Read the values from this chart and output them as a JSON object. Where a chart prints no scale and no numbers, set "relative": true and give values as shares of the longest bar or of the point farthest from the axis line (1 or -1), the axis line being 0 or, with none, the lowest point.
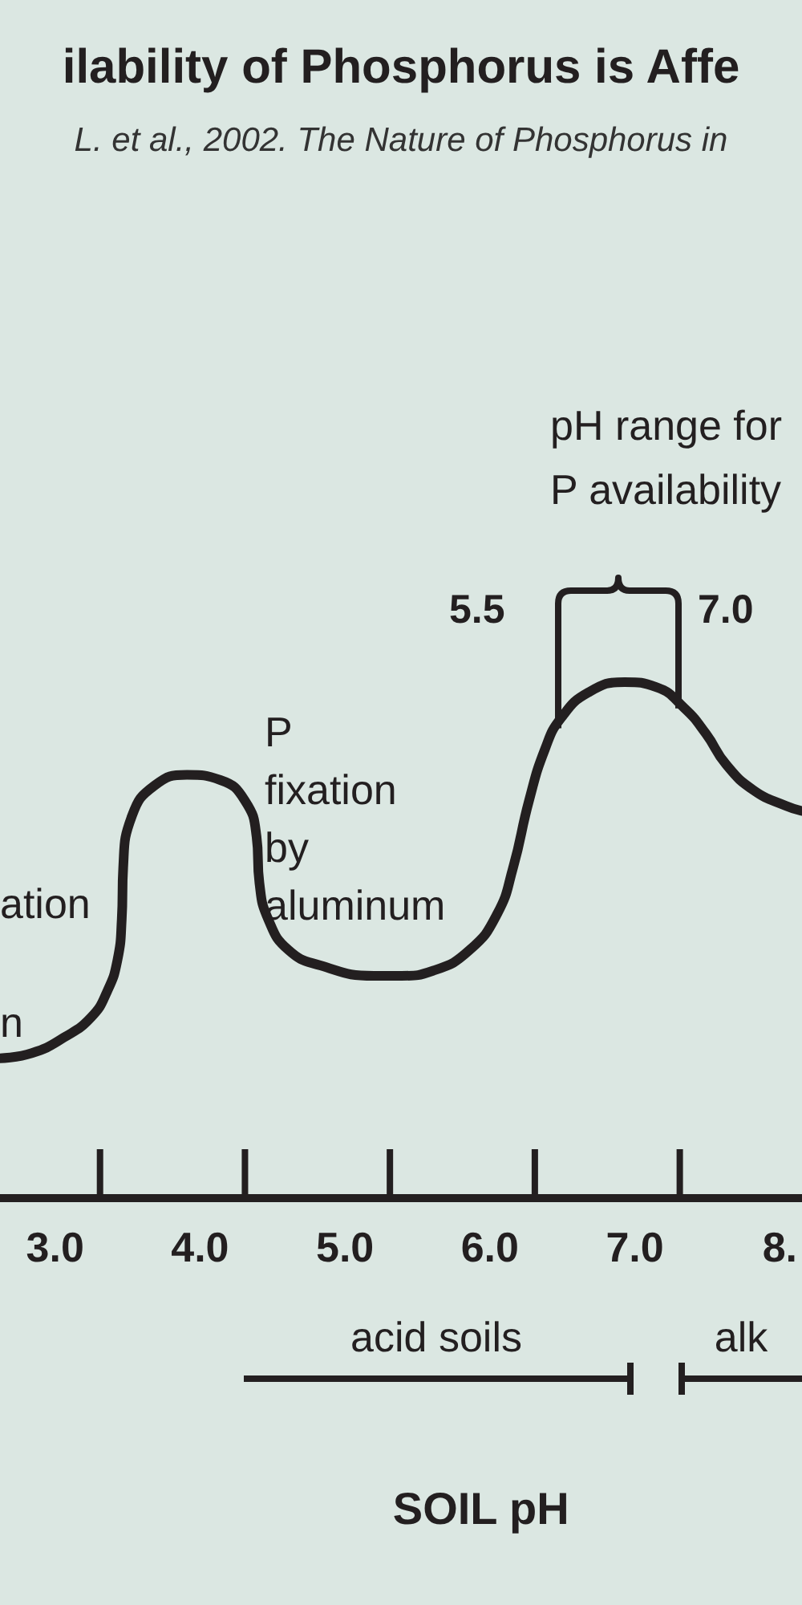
{
  "chart_data": {
    "type": "line",
    "title": "ilability of Phosphorus is Affe",
    "subtitle": "L. et al., 2002. The Nature of Phosphorus in",
    "xlabel": "SOIL pH",
    "relative": true,
    "color": "#231f20",
    "x": [
      2.62,
      2.84,
      3.06,
      3.25,
      3.36,
      3.43,
      3.46,
      3.47,
      3.53,
      3.69,
      3.91,
      4.14,
      4.31,
      4.39,
      4.41,
      4.47,
      4.61,
      4.83,
      5.2,
      5.39,
      5.61,
      5.86,
      6.05,
      6.16,
      6.27,
      6.38,
      6.49,
      6.68,
      6.93,
      7.15,
      7.34,
      7.49,
      7.63,
      7.82,
      8.04,
      8.15
    ],
    "values": [
      0.27,
      0.28,
      0.31,
      0.35,
      0.4,
      0.46,
      0.54,
      0.64,
      0.74,
      0.8,
      0.82,
      0.81,
      0.77,
      0.7,
      0.61,
      0.54,
      0.48,
      0.45,
      0.43,
      0.43,
      0.44,
      0.48,
      0.55,
      0.64,
      0.77,
      0.87,
      0.93,
      0.98,
      1,
      0.99,
      0.95,
      0.9,
      0.84,
      0.79,
      0.76,
      0.75
    ],
    "xlim": [
      2.62,
      8.15
    ],
    "xticks": [
      {
        "value": 3,
        "label": "3.0"
      },
      {
        "value": 4,
        "label": "4.0"
      },
      {
        "value": 5,
        "label": "5.0"
      },
      {
        "value": 6,
        "label": "6.0"
      },
      {
        "value": 7,
        "label": "7.0"
      },
      {
        "value": 8,
        "label": "8."
      }
    ],
    "annotations": [
      "pH range for\nP availability",
      "5.5",
      "7.0",
      "P\nfixation\nby\naluminum",
      "ation",
      "n",
      "acid soils",
      "alk"
    ]
  }
}
